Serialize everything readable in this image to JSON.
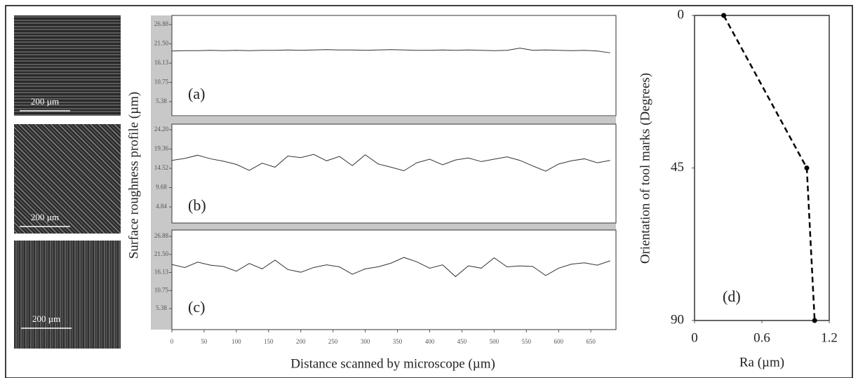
{
  "micrographs": [
    {
      "scale_bar": "200 µm"
    },
    {
      "scale_bar": "200 µm"
    },
    {
      "scale_bar": "200 µm"
    }
  ],
  "profile_y_label": "Surface roughness profile (µm)",
  "chart_data": [
    {
      "type": "line",
      "panel_label": "(a)",
      "x": [
        0,
        20,
        40,
        60,
        80,
        100,
        120,
        140,
        160,
        180,
        200,
        220,
        240,
        260,
        280,
        300,
        320,
        340,
        360,
        380,
        400,
        420,
        440,
        460,
        480,
        500,
        520,
        540,
        560,
        580,
        600,
        620,
        640,
        660,
        680
      ],
      "series": [
        {
          "color": "#333333",
          "values": [
            19.5,
            19.6,
            19.6,
            19.7,
            19.6,
            19.7,
            19.6,
            19.7,
            19.7,
            19.8,
            19.7,
            19.8,
            19.9,
            19.8,
            19.8,
            19.7,
            19.8,
            19.9,
            19.8,
            19.7,
            19.7,
            19.8,
            19.7,
            19.8,
            19.7,
            19.6,
            19.7,
            20.3,
            19.7,
            19.8,
            19.7,
            19.6,
            19.7,
            19.5,
            19.0
          ]
        }
      ],
      "xlim": [
        0,
        689
      ],
      "ylim": [
        1.47,
        29.42
      ],
      "yticks": [
        26.88,
        {
          "value": 21.5,
          "label": "21.50"
        },
        16.13,
        10.75,
        5.38
      ]
    },
    {
      "type": "line",
      "panel_label": "(b)",
      "x": [
        0,
        20,
        40,
        60,
        80,
        100,
        120,
        140,
        160,
        180,
        200,
        220,
        240,
        260,
        280,
        300,
        320,
        340,
        360,
        380,
        400,
        420,
        440,
        460,
        480,
        500,
        520,
        540,
        560,
        580,
        600,
        620,
        640,
        660,
        680
      ],
      "series": [
        {
          "color": "#333333",
          "values": [
            16.5,
            17.0,
            17.8,
            16.9,
            16.3,
            15.5,
            14.0,
            15.8,
            14.8,
            17.6,
            17.2,
            18.0,
            16.4,
            17.5,
            15.2,
            17.9,
            15.6,
            14.8,
            13.9,
            15.9,
            16.8,
            15.4,
            16.6,
            17.1,
            16.2,
            16.8,
            17.4,
            16.5,
            15.1,
            13.8,
            15.6,
            16.4,
            16.9,
            15.9,
            16.5
          ]
        }
      ],
      "xlim": [
        0,
        689
      ],
      "ylim": [
        0.79,
        25.6
      ],
      "yticks": [
        {
          "value": 24.2,
          "label": "24.20"
        },
        19.36,
        14.52,
        9.68,
        4.84
      ]
    },
    {
      "type": "line",
      "panel_label": "(c)",
      "x": [
        0,
        20,
        40,
        60,
        80,
        100,
        120,
        140,
        160,
        180,
        200,
        220,
        240,
        260,
        280,
        300,
        320,
        340,
        360,
        380,
        400,
        420,
        440,
        460,
        480,
        500,
        520,
        540,
        560,
        580,
        600,
        620,
        640,
        660,
        680
      ],
      "series": [
        {
          "color": "#333333",
          "values": [
            18.5,
            17.6,
            19.2,
            18.3,
            17.9,
            16.5,
            18.8,
            17.2,
            19.8,
            17.0,
            16.2,
            17.6,
            18.4,
            17.8,
            15.6,
            17.2,
            17.8,
            18.9,
            20.6,
            19.3,
            17.4,
            18.4,
            14.9,
            18.1,
            17.4,
            20.5,
            17.8,
            18.1,
            17.9,
            15.2,
            17.4,
            18.6,
            19.0,
            18.3,
            19.6
          ]
        }
      ],
      "xlim": [
        0,
        689
      ],
      "ylim": [
        -0.88,
        28.76
      ],
      "yticks": [
        26.88,
        {
          "value": 21.5,
          "label": "21.50"
        },
        16.13,
        10.75,
        5.38
      ],
      "xticks": [
        0,
        50,
        100,
        150,
        200,
        250,
        300,
        350,
        400,
        450,
        500,
        550,
        600,
        650
      ],
      "x_label": "Distance scanned by microscope (µm)"
    },
    {
      "type": "line",
      "panel_label": "(d)",
      "dashed": true,
      "y_inverted": true,
      "x": [
        0.26,
        1.0,
        1.07
      ],
      "series": [
        {
          "color": "#000000",
          "values": [
            0,
            45,
            90
          ]
        }
      ],
      "xlim": [
        0,
        1.2
      ],
      "ylim": [
        0,
        90
      ],
      "xticks": [
        0,
        0.6,
        1.2
      ],
      "yticks": [
        0,
        45,
        90
      ],
      "x_label": "Ra (µm)",
      "y_label": "Orientation of tool marks (Degrees)"
    }
  ]
}
